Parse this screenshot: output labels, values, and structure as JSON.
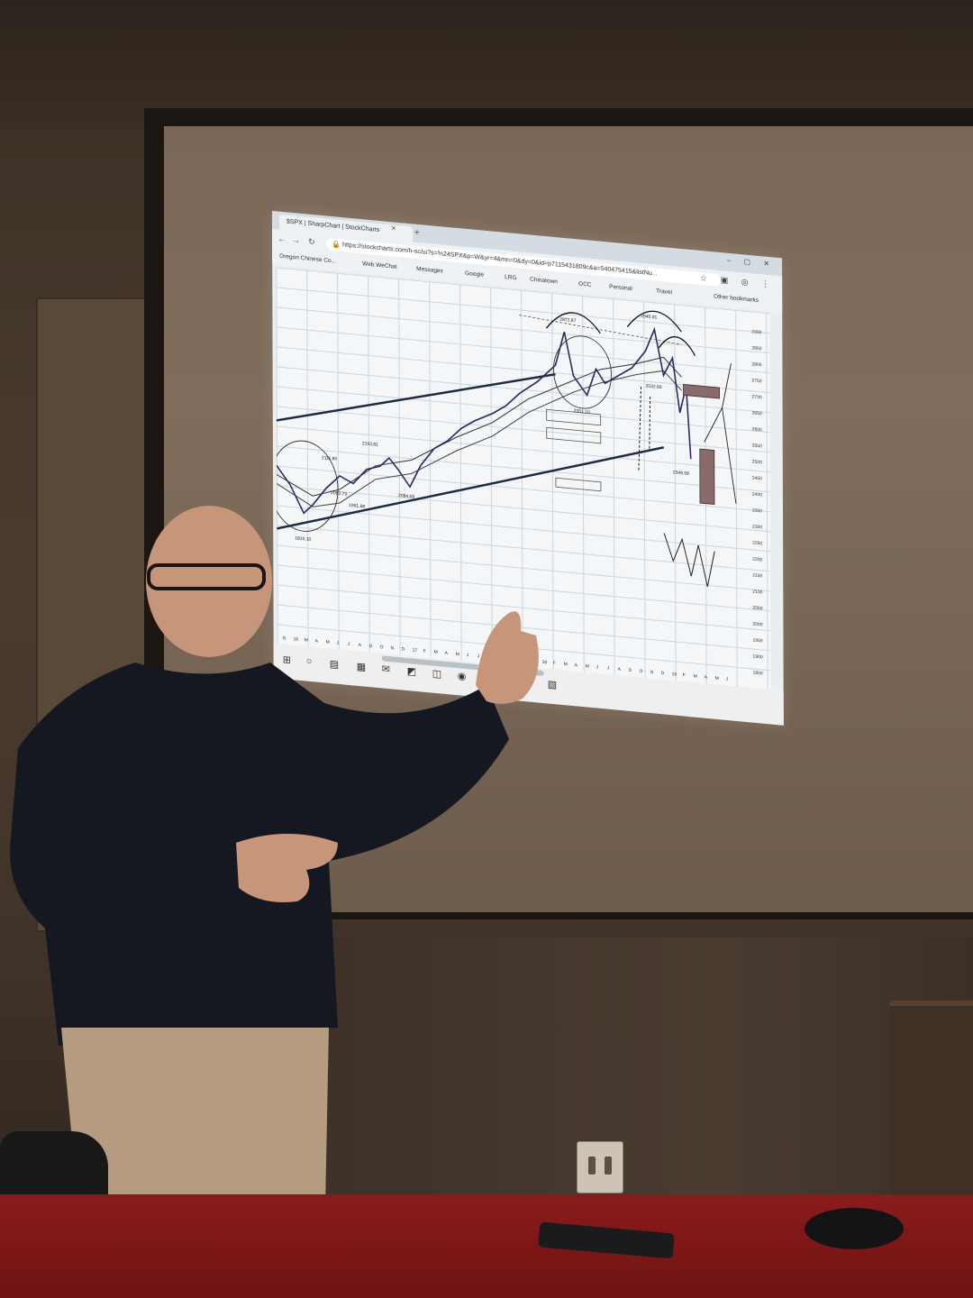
{
  "browser": {
    "tab_title": "$SPX | SharpChart | StockCharts",
    "url": "https://stockcharts.com/h-sc/ui?s=%24SPX&p=W&yr=4&mn=0&dy=0&id=p7115431809c&a=540475415&listNu...",
    "bookmarks": [
      "Oregon Chinese Co...",
      "Web WeChat",
      "Messages",
      "Google",
      "LRG",
      "Chinatown",
      "OCC",
      "Personal",
      "Travel",
      "Other bookmarks"
    ]
  },
  "chart_annotations": {
    "peak_1": "2872.87",
    "peak_2": "2940.91",
    "low_1": "2351.10",
    "low_2": "2532.69",
    "low_3": "2084.59",
    "low_4": "1810.10",
    "mid_1": "2111.80",
    "mid_2": "2193.81",
    "mid_3": "2083.79",
    "mid_4": "1991.68",
    "right_low": "2346.58"
  },
  "chart_axis": {
    "price_ticks": [
      "2900",
      "2850",
      "2800",
      "2750",
      "2700",
      "2650",
      "2600",
      "2550",
      "2500",
      "2450",
      "2400",
      "2350",
      "2300",
      "2250",
      "2200",
      "2150",
      "2100",
      "2050",
      "2000",
      "1950",
      "1900",
      "1850"
    ],
    "month_ticks": [
      "S",
      "16",
      "M",
      "A",
      "M",
      "J",
      "J",
      "A",
      "S",
      "O",
      "N",
      "D",
      "17",
      "F",
      "M",
      "A",
      "M",
      "J",
      "J",
      "A",
      "S",
      "O",
      "N",
      "D",
      "18",
      "F",
      "M",
      "A",
      "M",
      "J",
      "J",
      "A",
      "S",
      "O",
      "N",
      "D",
      "19",
      "F",
      "M",
      "A",
      "M",
      "J"
    ]
  },
  "colors": {
    "screen_glow": "#e9eef1",
    "table_red": "#8a1b1b",
    "shirt": "#151820",
    "pants": "#b59c80",
    "skin": "#c7967a"
  },
  "taskbar_icons": [
    "windows-start-icon",
    "cortana-icon",
    "file-explorer-icon",
    "calculator-icon",
    "mail-icon",
    "photos-icon",
    "outlook-icon",
    "chrome-icon",
    "word-icon",
    "powerpoint-icon"
  ]
}
